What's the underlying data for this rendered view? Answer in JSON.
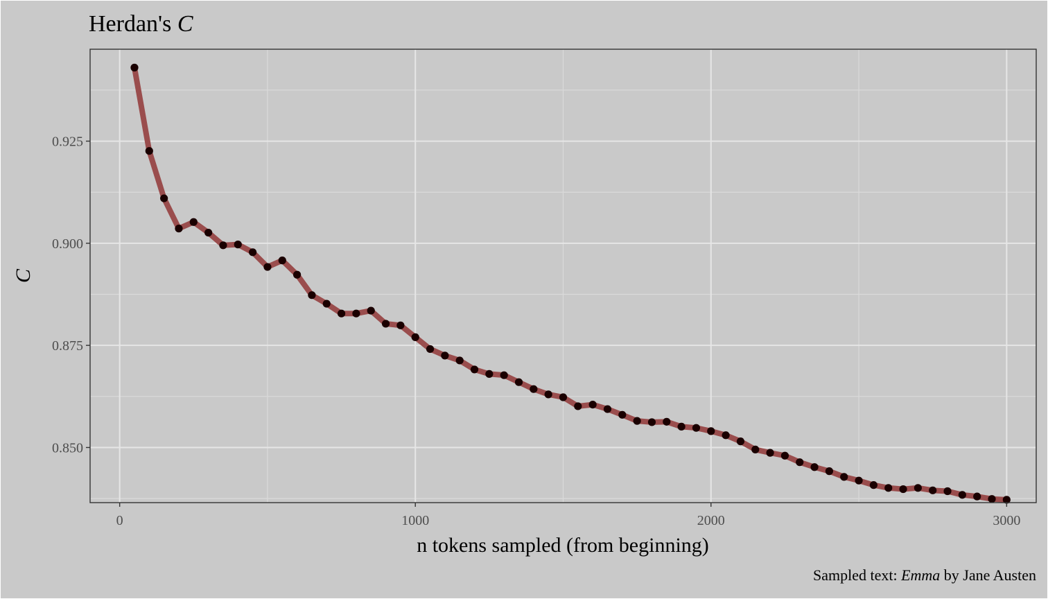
{
  "title": {
    "prefix": "Herdan's ",
    "italic": "C"
  },
  "caption": {
    "prefix": "Sampled text: ",
    "italic": "Emma",
    "suffix": " by Jane Austen"
  },
  "colors": {
    "background": "#c9c9c9",
    "line": "#9a4d4d",
    "points": "#1a0000",
    "grid": "#e6e6e6",
    "panel_border": "#333333"
  },
  "chart_data": {
    "type": "line",
    "title": "Herdan's C",
    "xlabel": "n tokens sampled (from beginning)",
    "ylabel": "C",
    "xlim": [
      -100,
      3100
    ],
    "ylim": [
      0.8365,
      0.9475
    ],
    "x_ticks": [
      0,
      1000,
      2000,
      3000
    ],
    "x_tick_labels": [
      "0",
      "1000",
      "2000",
      "3000"
    ],
    "y_ticks": [
      0.85,
      0.875,
      0.9,
      0.925
    ],
    "y_tick_labels": [
      "0.850",
      "0.875",
      "0.900",
      "0.925"
    ],
    "grid": true,
    "x": [
      50,
      100,
      150,
      200,
      250,
      300,
      350,
      400,
      450,
      500,
      550,
      600,
      650,
      700,
      750,
      800,
      850,
      900,
      950,
      1000,
      1050,
      1100,
      1150,
      1200,
      1250,
      1300,
      1350,
      1400,
      1450,
      1500,
      1550,
      1600,
      1650,
      1700,
      1750,
      1800,
      1850,
      1900,
      1950,
      2000,
      2050,
      2100,
      2150,
      2200,
      2250,
      2300,
      2350,
      2400,
      2450,
      2500,
      2550,
      2600,
      2650,
      2700,
      2750,
      2800,
      2850,
      2900,
      2950,
      3000
    ],
    "series": [
      {
        "values": [
          0.943,
          0.9226,
          0.911,
          0.9036,
          0.9052,
          0.9026,
          0.8995,
          0.8997,
          0.8978,
          0.8942,
          0.8958,
          0.8923,
          0.8873,
          0.8852,
          0.8828,
          0.8828,
          0.8835,
          0.8803,
          0.8799,
          0.877,
          0.8741,
          0.8725,
          0.8713,
          0.8691,
          0.868,
          0.8677,
          0.866,
          0.8643,
          0.863,
          0.8623,
          0.8601,
          0.8605,
          0.8594,
          0.858,
          0.8565,
          0.8562,
          0.8563,
          0.8551,
          0.8548,
          0.854,
          0.853,
          0.8515,
          0.8495,
          0.8487,
          0.848,
          0.8464,
          0.8452,
          0.8442,
          0.8428,
          0.8419,
          0.8408,
          0.8401,
          0.8398,
          0.8401,
          0.8395,
          0.8393,
          0.8384,
          0.838,
          0.8374,
          0.8372
        ]
      }
    ]
  }
}
